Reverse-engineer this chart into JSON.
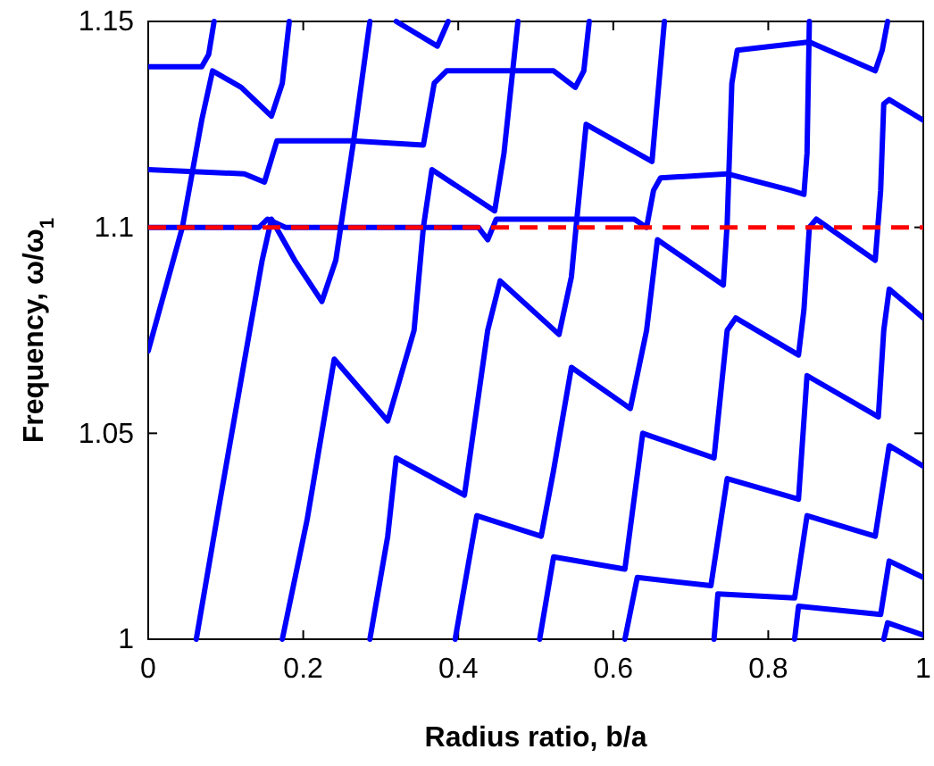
{
  "chart_data": {
    "type": "line",
    "xlabel": "Radius ratio, b/a",
    "ylabel": "Frequency, ω/ω$_{1}$",
    "xlim": [
      0,
      1
    ],
    "ylim": [
      1,
      1.15
    ],
    "xticks": [
      0,
      0.2,
      0.4,
      0.6,
      0.8,
      1
    ],
    "yticks": [
      1,
      1.05,
      1.1,
      1.15
    ],
    "line_style": "solid",
    "ref_lines": [
      {
        "axis": "y",
        "value": 1.1,
        "color": "#ff0000",
        "line_style": "dashed"
      }
    ],
    "series": [
      {
        "color": "#0000ff",
        "x": [
          0,
          0.044,
          0.069,
          0.083,
          0.12,
          0.159,
          0.173,
          0.182
        ],
        "values": [
          1.07,
          1.1,
          1.126,
          1.138,
          1.134,
          1.127,
          1.135,
          1.15
        ]
      },
      {
        "color": "#0000ff",
        "x": [
          0,
          0.069,
          0.078,
          0.085
        ],
        "values": [
          1.139,
          1.139,
          1.142,
          1.15
        ]
      },
      {
        "color": "#0000ff",
        "x": [
          0.062,
          0.092,
          0.131,
          0.147,
          0.159,
          0.189,
          0.224,
          0.242,
          0.265,
          0.286
        ],
        "values": [
          1.0,
          1.033,
          1.075,
          1.092,
          1.102,
          1.092,
          1.082,
          1.092,
          1.121,
          1.15
        ]
      },
      {
        "color": "#0000ff",
        "x": [
          0.173,
          0.205,
          0.24,
          0.309,
          0.343,
          0.355,
          0.366,
          0.447,
          0.459,
          0.477
        ],
        "values": [
          1.0,
          1.029,
          1.068,
          1.053,
          1.075,
          1.1,
          1.114,
          1.104,
          1.118,
          1.15
        ]
      },
      {
        "color": "#0000ff",
        "x": [
          0.286,
          0.309,
          0.32,
          0.408,
          0.438,
          0.454,
          0.53,
          0.546,
          0.553,
          0.565,
          0.65,
          0.657,
          0.666
        ],
        "values": [
          1.0,
          1.025,
          1.044,
          1.035,
          1.075,
          1.087,
          1.074,
          1.088,
          1.102,
          1.125,
          1.116,
          1.131,
          1.15
        ]
      },
      {
        "color": "#0000ff",
        "x": [
          0.396,
          0.424,
          0.507,
          0.523,
          0.546,
          0.622,
          0.643,
          0.657,
          0.742,
          0.747,
          0.753,
          0.76,
          0.853,
          0.938,
          0.947,
          0.954
        ],
        "values": [
          1.0,
          1.03,
          1.025,
          1.041,
          1.066,
          1.056,
          1.075,
          1.097,
          1.086,
          1.101,
          1.135,
          1.143,
          1.145,
          1.138,
          1.143,
          1.15
        ]
      },
      {
        "color": "#0000ff",
        "x": [
          0.505,
          0.523,
          0.615,
          0.638,
          0.73,
          0.747,
          0.758,
          0.839,
          0.846,
          0.853,
          0.862,
          0.938,
          0.945,
          0.949,
          0.956,
          1.0
        ],
        "values": [
          1.0,
          1.02,
          1.017,
          1.05,
          1.044,
          1.075,
          1.078,
          1.069,
          1.08,
          1.1,
          1.102,
          1.092,
          1.109,
          1.13,
          1.131,
          1.126
        ]
      },
      {
        "color": "#0000ff",
        "x": [
          0.615,
          0.631,
          0.726,
          0.747,
          0.839,
          0.85,
          0.942,
          0.949,
          0.956,
          1.0
        ],
        "values": [
          1.0,
          1.015,
          1.013,
          1.039,
          1.034,
          1.064,
          1.054,
          1.075,
          1.085,
          1.078
        ]
      },
      {
        "color": "#0000ff",
        "x": [
          0.73,
          0.735,
          0.834,
          0.85,
          0.938,
          0.956,
          1.0
        ],
        "values": [
          1.0,
          1.011,
          1.01,
          1.03,
          1.025,
          1.047,
          1.042
        ]
      },
      {
        "color": "#0000ff",
        "x": [
          0.834,
          0.839,
          0.945,
          0.956,
          1.0
        ],
        "values": [
          1.0,
          1.008,
          1.006,
          1.019,
          1.015
        ]
      },
      {
        "color": "#0000ff",
        "x": [
          0.949,
          0.954,
          1.0
        ],
        "values": [
          1.0,
          1.004,
          1.001
        ]
      },
      {
        "color": "#0000ff",
        "x": [
          0,
          0.124,
          0.15,
          0.166,
          0.263,
          0.355,
          0.369,
          0.385,
          0.523,
          0.551,
          0.562,
          0.569
        ],
        "values": [
          1.114,
          1.113,
          1.111,
          1.121,
          1.121,
          1.12,
          1.135,
          1.138,
          1.138,
          1.134,
          1.138,
          1.15
        ]
      },
      {
        "color": "#0000ff",
        "x": [
          0,
          0.143,
          0.154,
          0.177,
          0.426,
          0.438,
          0.449,
          0.5,
          0.627,
          0.643,
          0.652,
          0.661,
          0.747,
          0.829,
          0.846,
          0.85,
          0.853
        ],
        "values": [
          1.1,
          1.1,
          1.102,
          1.1,
          1.1,
          1.097,
          1.102,
          1.102,
          1.102,
          1.1,
          1.109,
          1.112,
          1.113,
          1.109,
          1.108,
          1.118,
          1.15
        ]
      },
      {
        "color": "#0000ff",
        "x": [
          0.32,
          0.373,
          0.387
        ],
        "values": [
          1.15,
          1.144,
          1.15
        ]
      }
    ]
  }
}
